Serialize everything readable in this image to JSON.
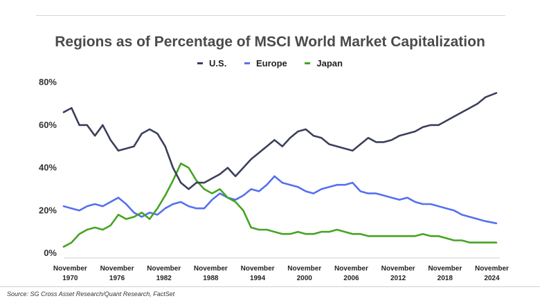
{
  "chart_data": {
    "type": "line",
    "title": "Regions as of Percentage of MSCI World Market Capitalization",
    "xlabel": "",
    "ylabel": "",
    "ylim": [
      0,
      80
    ],
    "xlim": [
      1970,
      2025.5
    ],
    "grid": false,
    "legend_position": "top-center",
    "yticks": [
      "0%",
      "20%",
      "40%",
      "60%",
      "80%"
    ],
    "ytick_values": [
      0,
      20,
      40,
      60,
      80
    ],
    "xticks": [
      {
        "line1": "November",
        "line2": "1970",
        "value": 1970.83
      },
      {
        "line1": "November",
        "line2": "1976",
        "value": 1976.83
      },
      {
        "line1": "November",
        "line2": "1982",
        "value": 1982.83
      },
      {
        "line1": "November",
        "line2": "1988",
        "value": 1988.83
      },
      {
        "line1": "November",
        "line2": "1994",
        "value": 1994.83
      },
      {
        "line1": "November",
        "line2": "2000",
        "value": 2000.83
      },
      {
        "line1": "November",
        "line2": "2006",
        "value": 2006.83
      },
      {
        "line1": "November",
        "line2": "2012",
        "value": 2012.83
      },
      {
        "line1": "November",
        "line2": "2018",
        "value": 2018.83
      },
      {
        "line1": "November",
        "line2": "2024",
        "value": 2024.83
      }
    ],
    "x": [
      1970,
      1971,
      1972,
      1973,
      1974,
      1975,
      1976,
      1977,
      1978,
      1979,
      1980,
      1981,
      1982,
      1983,
      1984,
      1985,
      1986,
      1987,
      1988,
      1989,
      1990,
      1991,
      1992,
      1993,
      1994,
      1995,
      1996,
      1997,
      1998,
      1999,
      2000,
      2001,
      2002,
      2003,
      2004,
      2005,
      2006,
      2007,
      2008,
      2009,
      2010,
      2011,
      2012,
      2013,
      2014,
      2015,
      2016,
      2017,
      2018,
      2019,
      2020,
      2021,
      2022,
      2023,
      2024,
      2025.4
    ],
    "series": [
      {
        "name": "U.S.",
        "color": "#3b3f5c",
        "values": [
          66,
          68,
          60,
          60,
          55,
          60,
          53,
          48,
          49,
          50,
          56,
          58,
          56,
          50,
          40,
          33,
          30,
          33,
          33,
          35,
          37,
          40,
          36,
          40,
          44,
          47,
          50,
          53,
          50,
          54,
          57,
          58,
          55,
          54,
          51,
          50,
          49,
          48,
          51,
          54,
          52,
          52,
          53,
          55,
          56,
          57,
          59,
          60,
          60,
          62,
          64,
          66,
          68,
          70,
          73,
          75
        ]
      },
      {
        "name": "Europe",
        "color": "#5470f0",
        "values": [
          22,
          21,
          20,
          22,
          23,
          22,
          24,
          26,
          23,
          19,
          17,
          19,
          18,
          21,
          23,
          24,
          22,
          21,
          21,
          25,
          28,
          26,
          25,
          27,
          30,
          29,
          32,
          36,
          33,
          32,
          31,
          29,
          28,
          30,
          31,
          32,
          32,
          33,
          29,
          28,
          28,
          27,
          26,
          25,
          26,
          24,
          23,
          23,
          22,
          21,
          20,
          18,
          17,
          16,
          15,
          14
        ]
      },
      {
        "name": "Japan",
        "color": "#44a421",
        "values": [
          3,
          5,
          9,
          11,
          12,
          11,
          13,
          18,
          16,
          17,
          19,
          16,
          21,
          27,
          34,
          42,
          40,
          34,
          30,
          28,
          30,
          26,
          24,
          20,
          12,
          11,
          11,
          10,
          9,
          9,
          10,
          9,
          9,
          10,
          10,
          11,
          10,
          9,
          9,
          8,
          8,
          8,
          8,
          8,
          8,
          8,
          9,
          8,
          8,
          7,
          6,
          6,
          5,
          5,
          5,
          5
        ]
      }
    ]
  },
  "source_note": "Source: SG Cross Asset Research/Quant Research, FactSet"
}
